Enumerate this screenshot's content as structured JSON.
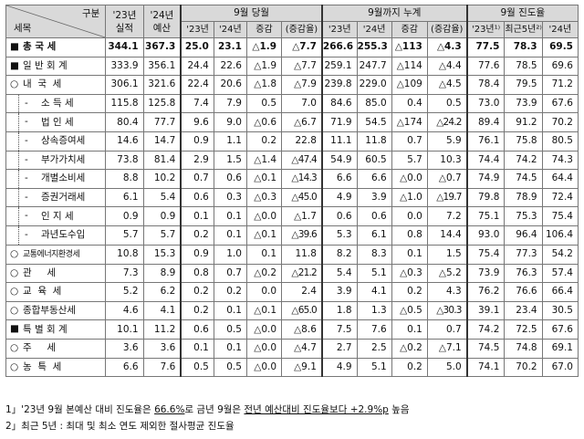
{
  "header": {
    "corner_top": "구분",
    "corner_bottom": "세목",
    "col_23_actual": [
      "'23년",
      "실적"
    ],
    "col_24_budget": [
      "'24년",
      "예산"
    ],
    "group_sep": "9월 당월",
    "group_cum": "9월까지 누계",
    "group_prog": "9월 진도율",
    "sep_sub": [
      "'23년",
      "'24년",
      "증감",
      "(증감율)"
    ],
    "cum_sub": [
      "'23년",
      "'24년",
      "증감",
      "(증감율)"
    ],
    "prog_sub": [
      "'23년¹⁾",
      "최근5년²⁾",
      "'24년"
    ]
  },
  "rows": [
    {
      "marker": "■",
      "name": "총 국 세",
      "level": 0,
      "bold": true,
      "v": [
        "344.1",
        "367.3",
        "25.0",
        "23.1",
        "△1.9",
        "△7.7",
        "266.6",
        "255.3",
        "△113",
        "△4.3",
        "77.5",
        "78.3",
        "69.5"
      ]
    },
    {
      "marker": "■",
      "name": "일 반 회 계",
      "level": 0,
      "v": [
        "333.9",
        "356.1",
        "24.4",
        "22.6",
        "△1.9",
        "△7.7",
        "259.1",
        "247.7",
        "△114",
        "△4.4",
        "77.6",
        "78.5",
        "69.6"
      ]
    },
    {
      "marker": "○",
      "name": "내  국  세",
      "level": 1,
      "v": [
        "306.1",
        "321.6",
        "22.4",
        "20.6",
        "△1.8",
        "△7.9",
        "239.8",
        "229.0",
        "△109",
        "△4.5",
        "78.4",
        "79.5",
        "71.2"
      ]
    },
    {
      "marker": "-",
      "name": "소 득 세",
      "level": 2,
      "v": [
        "115.8",
        "125.8",
        "7.4",
        "7.9",
        "0.5",
        "7.0",
        "84.6",
        "85.0",
        "0.4",
        "0.5",
        "73.0",
        "73.9",
        "67.6"
      ]
    },
    {
      "marker": "-",
      "name": "법 인 세",
      "level": 2,
      "v": [
        "80.4",
        "77.7",
        "9.6",
        "9.0",
        "△0.6",
        "△6.7",
        "71.9",
        "54.5",
        "△174",
        "△24.2",
        "89.4",
        "91.2",
        "70.2"
      ]
    },
    {
      "marker": "-",
      "name": "상속증여세",
      "level": 2,
      "v": [
        "14.6",
        "14.7",
        "0.9",
        "1.1",
        "0.2",
        "22.8",
        "11.1",
        "11.8",
        "0.7",
        "5.9",
        "76.1",
        "75.8",
        "80.5"
      ]
    },
    {
      "marker": "-",
      "name": "부가가치세",
      "level": 2,
      "v": [
        "73.8",
        "81.4",
        "2.9",
        "1.5",
        "△1.4",
        "△47.4",
        "54.9",
        "60.5",
        "5.7",
        "10.3",
        "74.4",
        "74.2",
        "74.3"
      ]
    },
    {
      "marker": "-",
      "name": "개별소비세",
      "level": 2,
      "v": [
        "8.8",
        "10.2",
        "0.7",
        "0.6",
        "△0.1",
        "△14.3",
        "6.6",
        "6.6",
        "△0.0",
        "△0.7",
        "74.9",
        "74.5",
        "64.4"
      ]
    },
    {
      "marker": "-",
      "name": "증권거래세",
      "level": 2,
      "v": [
        "6.1",
        "5.4",
        "0.6",
        "0.3",
        "△0.3",
        "△45.0",
        "4.9",
        "3.9",
        "△1.0",
        "△19.7",
        "79.8",
        "78.9",
        "72.4"
      ]
    },
    {
      "marker": "-",
      "name": "인 지 세",
      "level": 2,
      "v": [
        "0.9",
        "0.9",
        "0.1",
        "0.1",
        "△0.0",
        "△1.7",
        "0.6",
        "0.6",
        "0.0",
        "7.2",
        "75.1",
        "75.3",
        "75.4"
      ]
    },
    {
      "marker": "-",
      "name": "과년도수입",
      "level": 2,
      "v": [
        "5.7",
        "5.7",
        "0.2",
        "0.1",
        "△0.1",
        "△39.6",
        "5.3",
        "6.1",
        "0.8",
        "14.4",
        "93.0",
        "96.4",
        "106.4"
      ]
    },
    {
      "marker": "○",
      "name": "교통에너지환경세",
      "level": 1,
      "small": true,
      "v": [
        "10.8",
        "15.3",
        "0.9",
        "1.0",
        "0.1",
        "11.8",
        "8.2",
        "8.3",
        "0.1",
        "1.5",
        "75.4",
        "77.3",
        "54.2"
      ]
    },
    {
      "marker": "○",
      "name": "관     세",
      "level": 1,
      "v": [
        "7.3",
        "8.9",
        "0.8",
        "0.7",
        "△0.2",
        "△21.2",
        "5.4",
        "5.1",
        "△0.3",
        "△5.2",
        "73.9",
        "76.3",
        "57.4"
      ]
    },
    {
      "marker": "○",
      "name": "교  육  세",
      "level": 1,
      "v": [
        "5.2",
        "6.2",
        "0.2",
        "0.2",
        "0.0",
        "2.4",
        "3.9",
        "4.1",
        "0.2",
        "4.3",
        "76.2",
        "76.6",
        "66.4"
      ]
    },
    {
      "marker": "○",
      "name": "종합부동산세",
      "level": 1,
      "v": [
        "4.6",
        "4.1",
        "0.2",
        "0.1",
        "△0.1",
        "△65.0",
        "1.8",
        "1.3",
        "△0.5",
        "△30.3",
        "39.1",
        "23.4",
        "30.5"
      ]
    },
    {
      "marker": "■",
      "name": "특 별 회 계",
      "level": 0,
      "v": [
        "10.1",
        "11.2",
        "0.6",
        "0.5",
        "△0.0",
        "△8.6",
        "7.5",
        "7.6",
        "0.1",
        "0.7",
        "74.2",
        "72.5",
        "67.6"
      ]
    },
    {
      "marker": "○",
      "name": "주     세",
      "level": 1,
      "v": [
        "3.6",
        "3.6",
        "0.1",
        "0.1",
        "△0.0",
        "△4.7",
        "2.7",
        "2.5",
        "△0.2",
        "△7.1",
        "74.5",
        "74.8",
        "69.1"
      ]
    },
    {
      "marker": "○",
      "name": "농  특  세",
      "level": 1,
      "v": [
        "6.6",
        "7.6",
        "0.5",
        "0.5",
        "△0.0",
        "△9.1",
        "4.9",
        "5.1",
        "0.2",
        "5.0",
        "74.1",
        "70.2",
        "67.0"
      ]
    }
  ],
  "notes": {
    "n1_pre": "1」'23년 9월 본예산 대비 진도율은 ",
    "n1_u1": "66.6%",
    "n1_mid": "로 금년 9월은 ",
    "n1_u2": "전년 예산대비 진도율보다 +2.9%p",
    "n1_post": " 높음",
    "n2": "2」최근 5년 : 최대 및 최소 연도 제외한 절사평균 진도율"
  }
}
